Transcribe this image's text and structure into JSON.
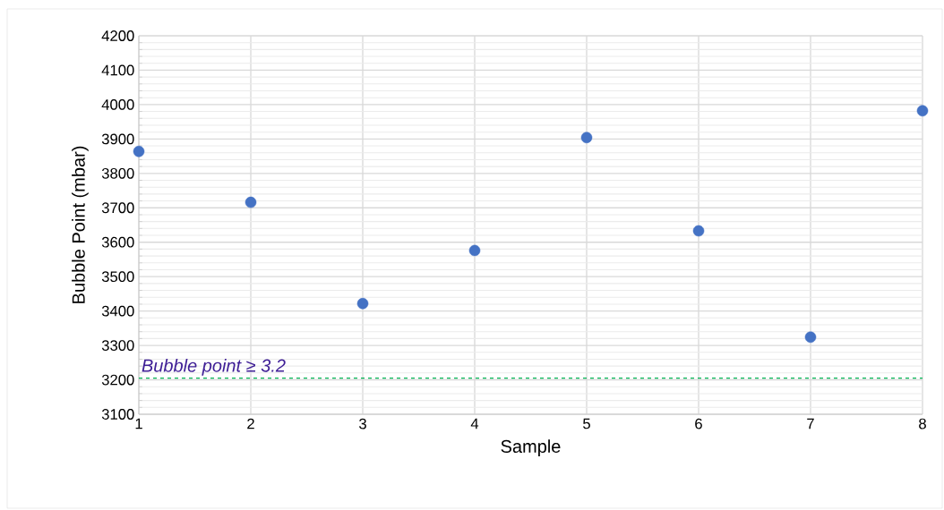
{
  "chart_data": {
    "type": "scatter",
    "xlabel": "Sample",
    "ylabel": "Bubble Point (mbar)",
    "x": [
      1,
      2,
      3,
      4,
      5,
      6,
      7,
      8
    ],
    "values": [
      3864,
      3716,
      3422,
      3576,
      3904,
      3633,
      3324,
      3982
    ],
    "color": "#4472c4",
    "marker": "circle",
    "xlim": [
      1,
      8
    ],
    "xticks": [
      1,
      2,
      3,
      4,
      5,
      6,
      7,
      8
    ],
    "ylim": [
      3100,
      4200
    ],
    "yticks": [
      3100,
      3200,
      3300,
      3400,
      3500,
      3600,
      3700,
      3800,
      3900,
      4000,
      4100,
      4200
    ],
    "grid": true,
    "ref_lines": [
      {
        "axis": "y",
        "value": 3205,
        "label": "Bubble point ≥ 3.2",
        "color": "#00b050",
        "line_style": "dashed"
      }
    ]
  }
}
